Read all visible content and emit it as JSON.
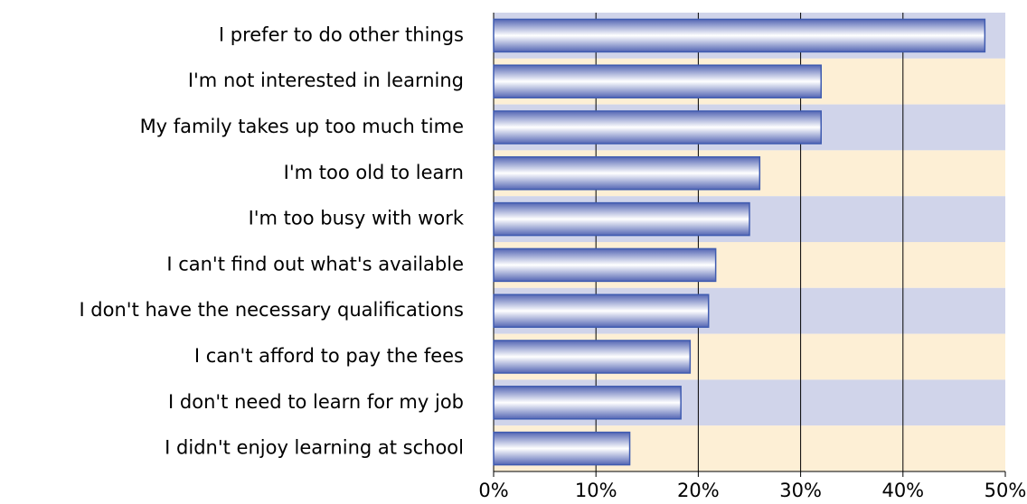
{
  "chart_data": {
    "type": "bar",
    "orientation": "horizontal",
    "categories": [
      "I prefer to do other things",
      "I'm not interested in learning",
      "My family takes up too much time",
      "I'm too old to learn",
      "I'm too busy with work",
      "I can't find out what's available",
      "I don't have the necessary qualifications",
      "I can't afford to pay the fees",
      "I don't need to learn for my job",
      "I didn't enjoy learning at school"
    ],
    "values": [
      48,
      32,
      32,
      26,
      25,
      21.7,
      21,
      19.2,
      18.3,
      13.3
    ],
    "color": "#3f5bb0",
    "band_colors": [
      "#d0d4ea",
      "#fdefd5"
    ],
    "xlim": [
      0,
      50
    ],
    "xticks": [
      {
        "value": 0,
        "label": "0%"
      },
      {
        "value": 10,
        "label": "10%"
      },
      {
        "value": 20,
        "label": "20%"
      },
      {
        "value": 30,
        "label": "30%"
      },
      {
        "value": 40,
        "label": "40%"
      },
      {
        "value": 50,
        "label": "50%"
      }
    ],
    "grid": true
  }
}
